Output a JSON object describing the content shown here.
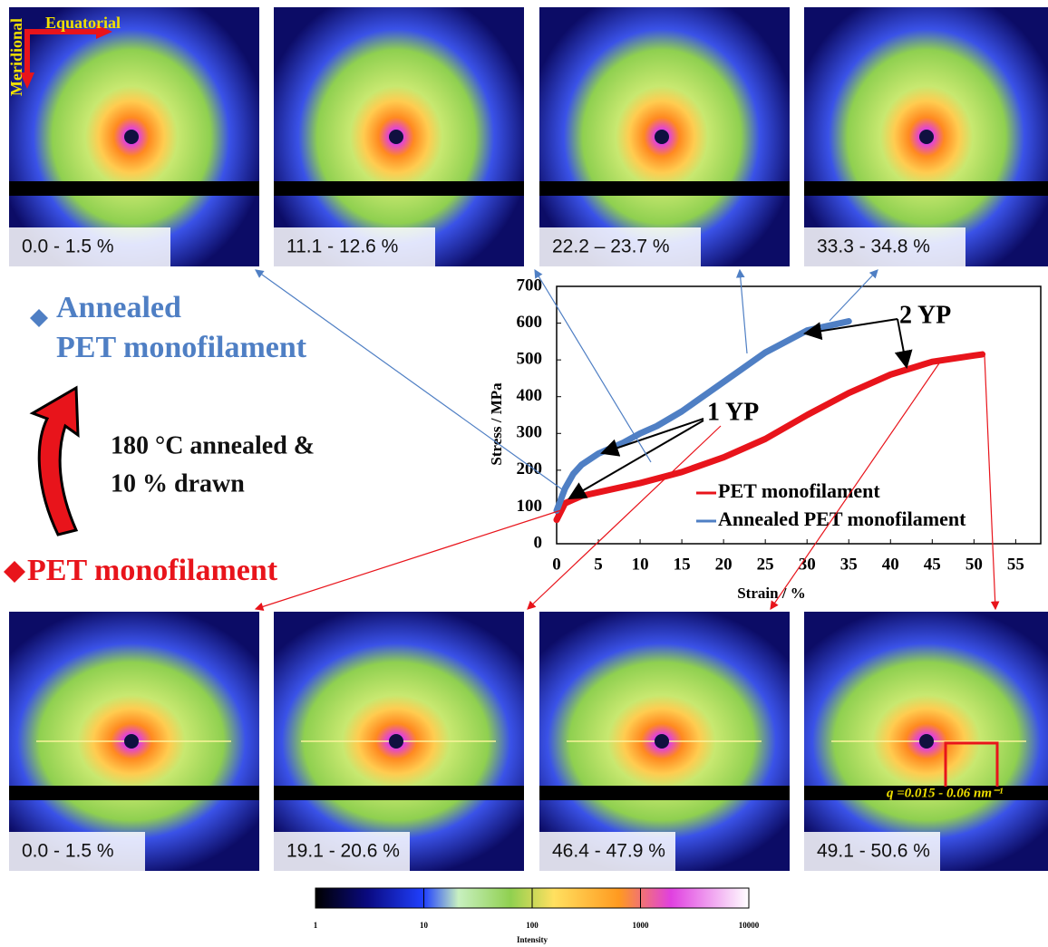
{
  "chart_data": {
    "type": "line",
    "xlabel": "Strain / %",
    "ylabel": "Stress / MPa",
    "xlim": [
      0,
      58
    ],
    "ylim": [
      0,
      700
    ],
    "xticks": [
      0,
      5,
      10,
      15,
      20,
      25,
      30,
      35,
      40,
      45,
      50,
      55
    ],
    "yticks": [
      0,
      100,
      200,
      300,
      400,
      500,
      600,
      700
    ],
    "legend": "lower right",
    "series": [
      {
        "name": "PET monofilament",
        "color": "#e8141b",
        "x": [
          0,
          1,
          3,
          5,
          10,
          15,
          20,
          25,
          30,
          35,
          40,
          45,
          50,
          51
        ],
        "values": [
          65,
          110,
          130,
          140,
          165,
          195,
          235,
          285,
          350,
          410,
          460,
          495,
          512,
          515
        ]
      },
      {
        "name": "Annealed PET monofilament",
        "color": "#4f7fc4",
        "x": [
          0,
          1,
          2,
          3,
          5,
          8,
          10,
          12,
          15,
          20,
          25,
          30,
          35
        ],
        "values": [
          90,
          150,
          190,
          215,
          245,
          275,
          300,
          320,
          360,
          440,
          520,
          580,
          605
        ]
      }
    ],
    "annotations": [
      "1 YP",
      "2 YP"
    ]
  },
  "labels": {
    "annealed_title": "Annealed",
    "annealed_sub": "PET monofilament",
    "treatment_1": "180 °C annealed &",
    "treatment_2": "10 % drawn",
    "pet_title": "PET monofilament",
    "meridional": "Meridional",
    "equatorial": "Equatorial",
    "q_range": "q =0.015 - 0.06 nm⁻¹"
  },
  "panels_top": [
    "0.0 - 1.5 %",
    "11.1 - 12.6 %",
    "22.2 – 23.7 %",
    "33.3 - 34.8 %"
  ],
  "panels_bottom": [
    "0.0 - 1.5 %",
    "19.1 - 20.6 %",
    "46.4 - 47.9 %",
    "49.1 - 50.6 %"
  ],
  "colorbar": {
    "label": "Intensity",
    "lim": [
      1,
      10000
    ],
    "ticks": [
      1,
      10,
      100,
      1000,
      10000
    ]
  }
}
